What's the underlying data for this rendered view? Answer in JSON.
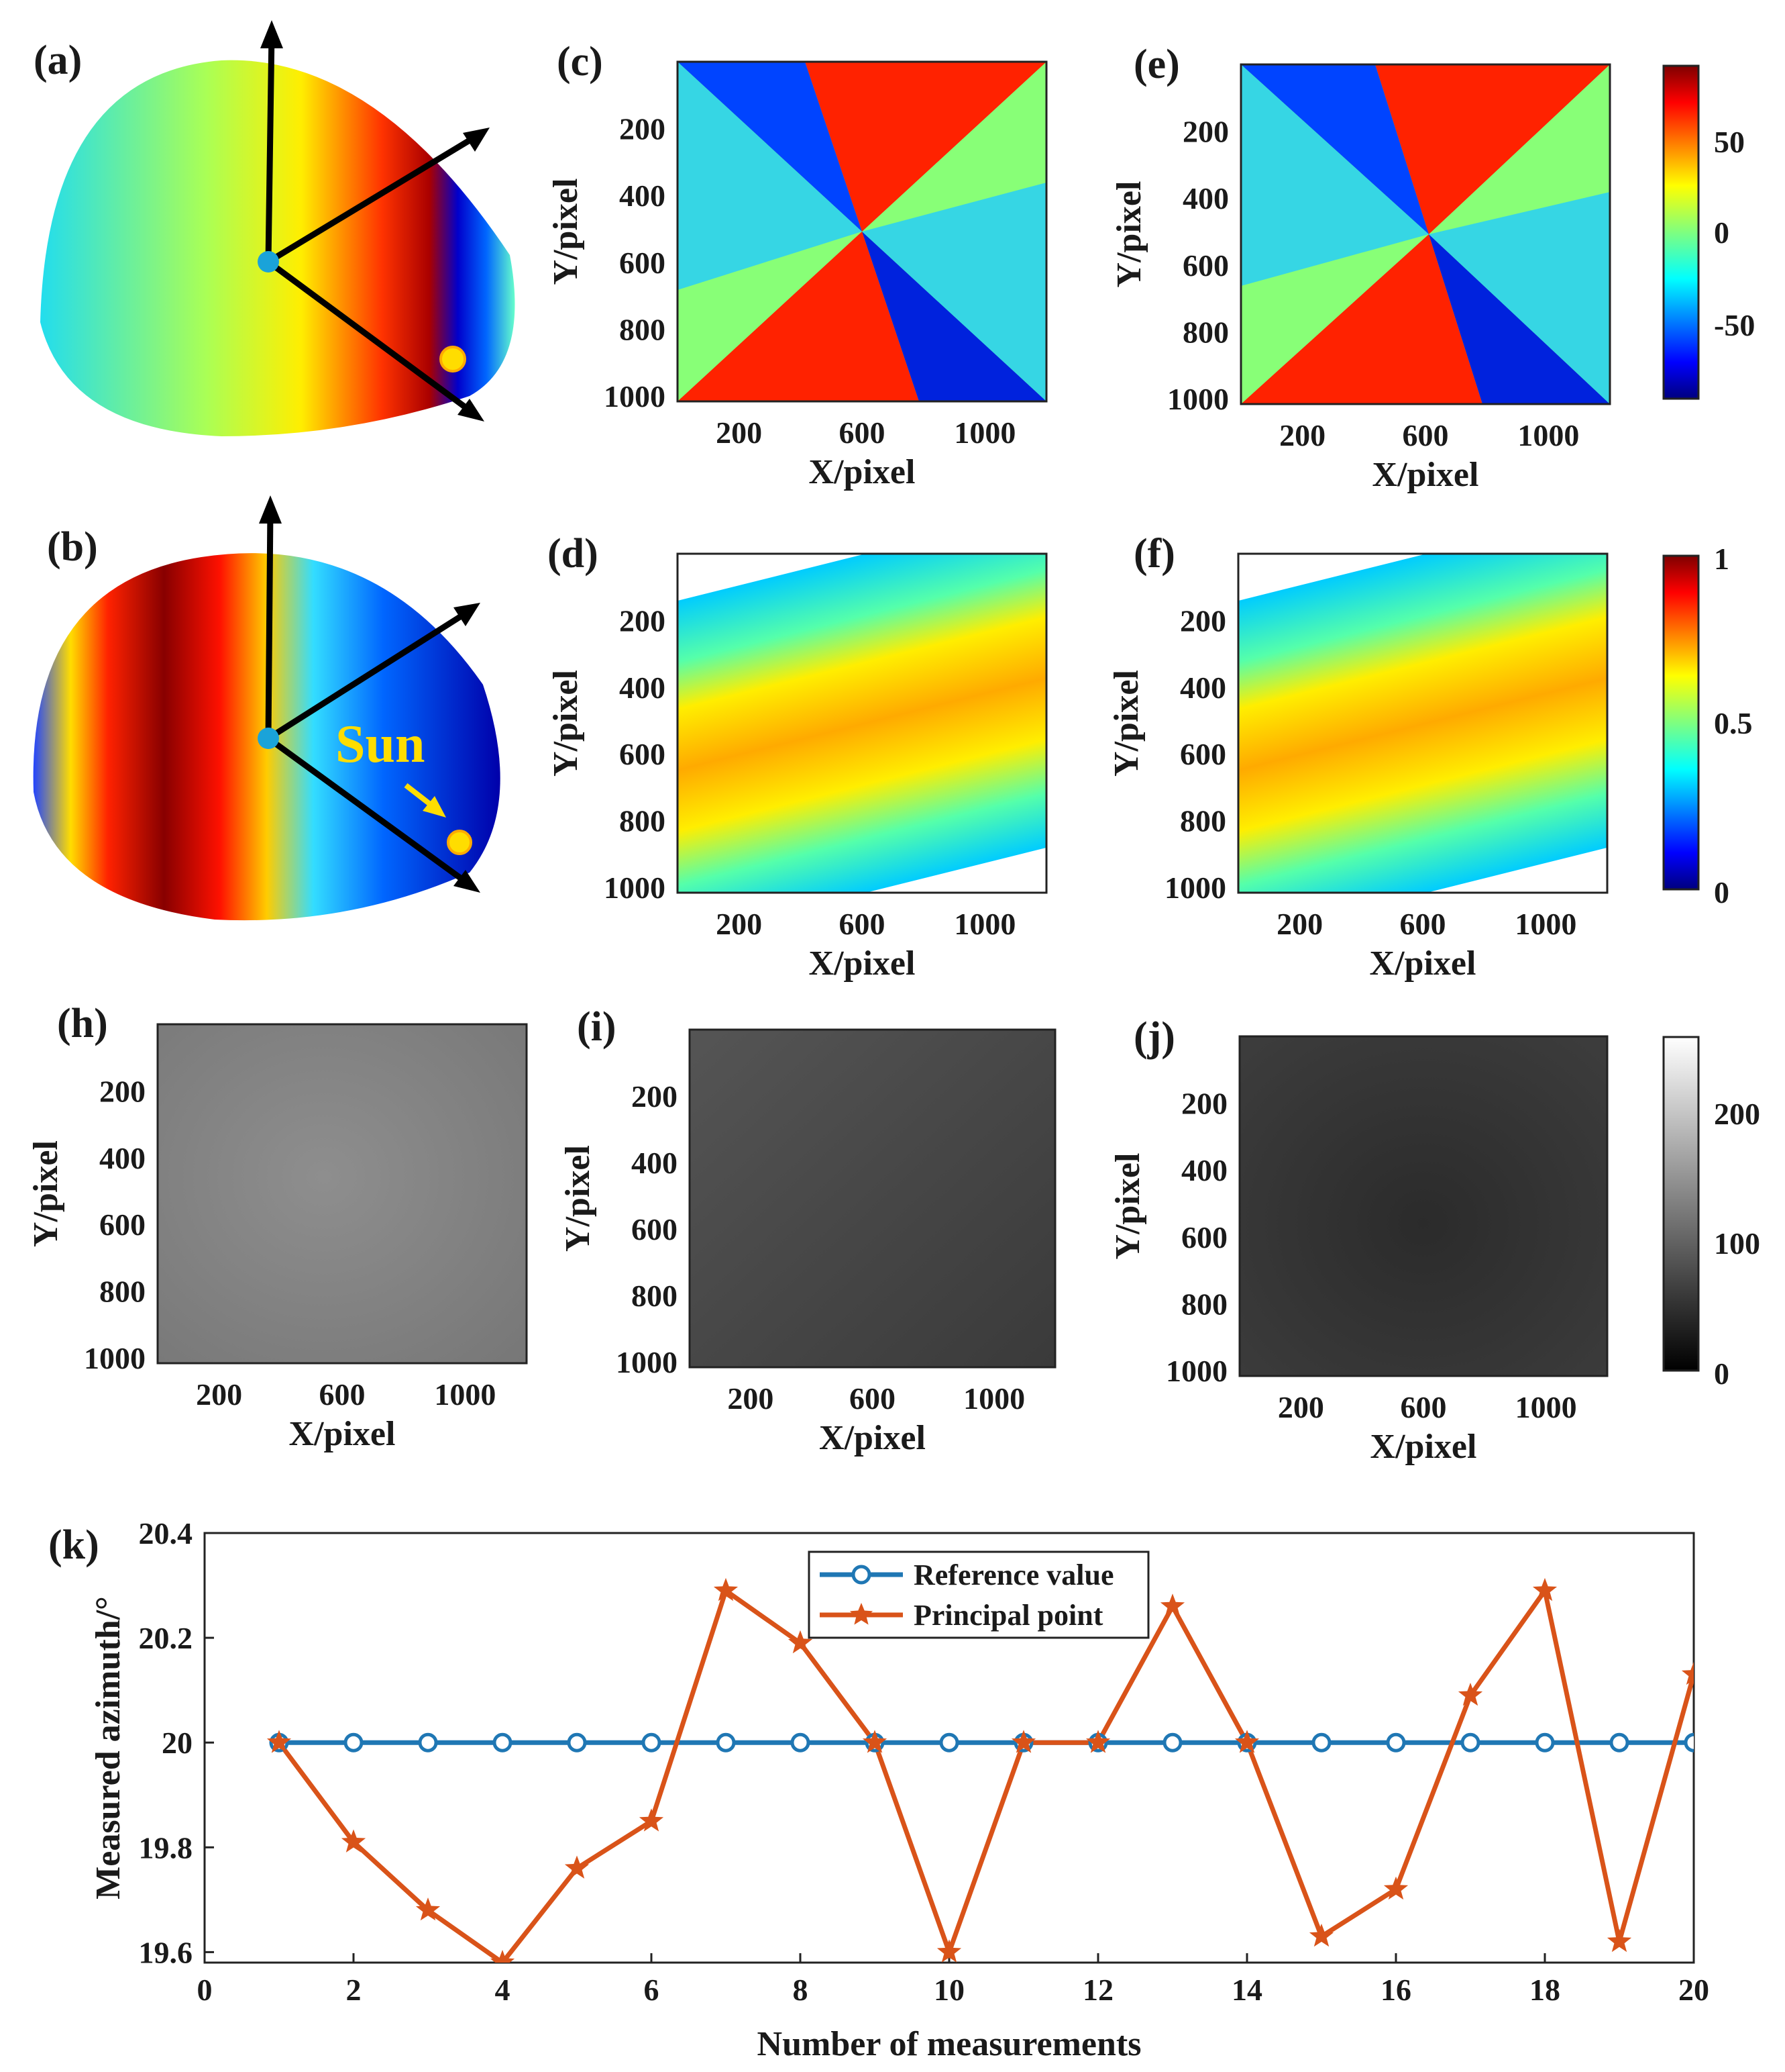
{
  "panel_labels": {
    "a": "(a)",
    "b": "(b)",
    "c": "(c)",
    "d": "(d)",
    "e": "(e)",
    "f": "(f)",
    "h": "(h)",
    "i": "(i)",
    "j": "(j)",
    "k": "(k)"
  },
  "sun_label": "Sun",
  "maps": {
    "xlabel": "X/pixel",
    "ylabel": "Y/pixel",
    "x_ticks": [
      "200",
      "600",
      "1000"
    ],
    "y_ticks": [
      "200",
      "400",
      "600",
      "800",
      "1000"
    ]
  },
  "colorbars": {
    "aop": {
      "ticks": [
        "50",
        "0",
        "-50"
      ],
      "range": [
        -90,
        90
      ]
    },
    "dop": {
      "ticks": [
        "1",
        "0.5",
        "0"
      ],
      "range": [
        0,
        1
      ]
    },
    "gray": {
      "ticks": [
        "200",
        "100",
        "0"
      ],
      "range": [
        0,
        255
      ]
    }
  },
  "colors": {
    "reference": "#1f77b4",
    "principal": "#d95319",
    "frame": "#222222",
    "sphere_center": "#1aa3d9",
    "sun": "#ffdd00"
  },
  "chart_data": {
    "type": "line",
    "xlabel": "Number of measurements",
    "ylabel": "Measured azimuth/°",
    "xlim": [
      0,
      20
    ],
    "ylim": [
      19.58,
      20.4
    ],
    "x_ticks": [
      "0",
      "2",
      "4",
      "6",
      "8",
      "10",
      "12",
      "14",
      "16",
      "18",
      "20"
    ],
    "y_ticks": [
      "20.4",
      "20.2",
      "20",
      "19.8",
      "19.6"
    ],
    "legend_position": "top-center",
    "x": [
      1,
      2,
      3,
      4,
      5,
      6,
      7,
      8,
      9,
      10,
      11,
      12,
      13,
      14,
      15,
      16,
      17,
      18,
      19,
      20
    ],
    "series": [
      {
        "name": "Reference value",
        "marker": "circle",
        "values": [
          20,
          20,
          20,
          20,
          20,
          20,
          20,
          20,
          20,
          20,
          20,
          20,
          20,
          20,
          20,
          20,
          20,
          20,
          20,
          20
        ]
      },
      {
        "name": "Principal point",
        "marker": "star",
        "values": [
          20,
          19.81,
          19.68,
          19.58,
          19.76,
          19.85,
          20.29,
          20.19,
          20,
          19.6,
          20,
          20,
          20.26,
          20,
          19.63,
          19.72,
          20.09,
          20.29,
          19.62,
          20.13
        ]
      }
    ]
  }
}
